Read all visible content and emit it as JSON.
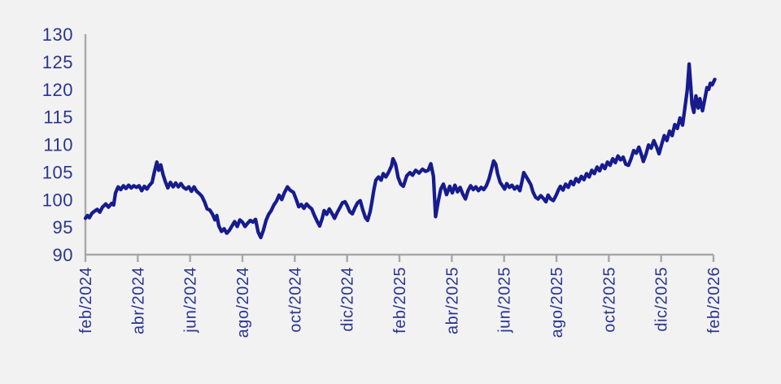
{
  "chart_data": {
    "type": "line",
    "title": "",
    "xlabel": "",
    "ylabel": "",
    "grid": false,
    "legend_position": "none",
    "background_color": "#f2f2f2",
    "axis_color": "#a9a7a9",
    "label_color": "#293590",
    "line_color": "#161c8e",
    "ylim": [
      90,
      130
    ],
    "y_tick_labels": [
      "130",
      "125",
      "120",
      "115",
      "110",
      "105",
      "100",
      "95",
      "90"
    ],
    "x_tick_labels": [
      "feb/2024",
      "abr/2024",
      "jun/2024",
      "ago/2024",
      "oct/2024",
      "dic/2024",
      "feb/2025",
      "abr/2025",
      "jun/2025",
      "ago/2025",
      "oct/2025",
      "dic/2025",
      "feb/2026"
    ],
    "x_unit": "months since feb/2024",
    "xlim_months": [
      0,
      24.1
    ],
    "series": [
      {
        "name": "index",
        "points": [
          [
            0.0,
            96.6
          ],
          [
            0.08,
            97.1
          ],
          [
            0.15,
            96.7
          ],
          [
            0.25,
            97.5
          ],
          [
            0.35,
            97.9
          ],
          [
            0.45,
            98.2
          ],
          [
            0.55,
            97.7
          ],
          [
            0.65,
            98.6
          ],
          [
            0.78,
            99.2
          ],
          [
            0.88,
            98.6
          ],
          [
            1.0,
            99.3
          ],
          [
            1.08,
            99.0
          ],
          [
            1.15,
            101.2
          ],
          [
            1.25,
            102.3
          ],
          [
            1.35,
            101.8
          ],
          [
            1.45,
            102.5
          ],
          [
            1.55,
            102.0
          ],
          [
            1.65,
            102.6
          ],
          [
            1.75,
            102.1
          ],
          [
            1.85,
            102.5
          ],
          [
            1.95,
            102.2
          ],
          [
            2.05,
            102.5
          ],
          [
            2.15,
            101.6
          ],
          [
            2.25,
            102.4
          ],
          [
            2.35,
            101.9
          ],
          [
            2.45,
            102.6
          ],
          [
            2.55,
            103.1
          ],
          [
            2.62,
            104.7
          ],
          [
            2.73,
            106.8
          ],
          [
            2.8,
            105.3
          ],
          [
            2.88,
            106.3
          ],
          [
            2.97,
            104.5
          ],
          [
            3.05,
            103.3
          ],
          [
            3.15,
            102.1
          ],
          [
            3.25,
            103.1
          ],
          [
            3.35,
            102.3
          ],
          [
            3.45,
            103.0
          ],
          [
            3.55,
            102.3
          ],
          [
            3.65,
            102.9
          ],
          [
            3.75,
            102.2
          ],
          [
            3.85,
            101.9
          ],
          [
            3.95,
            102.3
          ],
          [
            4.05,
            101.5
          ],
          [
            4.15,
            102.3
          ],
          [
            4.25,
            101.5
          ],
          [
            4.35,
            101.1
          ],
          [
            4.45,
            100.6
          ],
          [
            4.55,
            99.6
          ],
          [
            4.65,
            98.3
          ],
          [
            4.75,
            98.1
          ],
          [
            4.85,
            97.4
          ],
          [
            4.95,
            96.3
          ],
          [
            5.02,
            97.1
          ],
          [
            5.1,
            95.2
          ],
          [
            5.2,
            94.2
          ],
          [
            5.3,
            94.7
          ],
          [
            5.4,
            93.9
          ],
          [
            5.5,
            94.4
          ],
          [
            5.6,
            95.2
          ],
          [
            5.7,
            96.0
          ],
          [
            5.8,
            95.1
          ],
          [
            5.9,
            96.3
          ],
          [
            6.0,
            95.9
          ],
          [
            6.1,
            95.1
          ],
          [
            6.2,
            95.7
          ],
          [
            6.3,
            96.2
          ],
          [
            6.4,
            95.9
          ],
          [
            6.5,
            96.4
          ],
          [
            6.6,
            94.1
          ],
          [
            6.7,
            93.1
          ],
          [
            6.8,
            94.4
          ],
          [
            6.9,
            96.2
          ],
          [
            7.0,
            97.3
          ],
          [
            7.1,
            98.0
          ],
          [
            7.2,
            99.0
          ],
          [
            7.3,
            99.7
          ],
          [
            7.4,
            100.8
          ],
          [
            7.5,
            100.0
          ],
          [
            7.6,
            101.2
          ],
          [
            7.72,
            102.3
          ],
          [
            7.82,
            101.7
          ],
          [
            7.95,
            101.3
          ],
          [
            8.05,
            100.1
          ],
          [
            8.15,
            98.7
          ],
          [
            8.25,
            99.1
          ],
          [
            8.35,
            98.4
          ],
          [
            8.45,
            99.2
          ],
          [
            8.55,
            98.7
          ],
          [
            8.65,
            98.3
          ],
          [
            8.75,
            97.1
          ],
          [
            8.85,
            96.1
          ],
          [
            8.95,
            95.2
          ],
          [
            9.05,
            96.6
          ],
          [
            9.12,
            98.0
          ],
          [
            9.22,
            97.3
          ],
          [
            9.32,
            98.3
          ],
          [
            9.42,
            97.5
          ],
          [
            9.52,
            96.6
          ],
          [
            9.62,
            97.6
          ],
          [
            9.72,
            98.5
          ],
          [
            9.82,
            99.4
          ],
          [
            9.92,
            99.6
          ],
          [
            10.0,
            98.9
          ],
          [
            10.1,
            97.8
          ],
          [
            10.2,
            97.4
          ],
          [
            10.3,
            98.5
          ],
          [
            10.4,
            99.4
          ],
          [
            10.5,
            99.8
          ],
          [
            10.6,
            98.1
          ],
          [
            10.7,
            96.7
          ],
          [
            10.78,
            96.2
          ],
          [
            10.88,
            97.8
          ],
          [
            10.95,
            99.6
          ],
          [
            11.02,
            101.7
          ],
          [
            11.1,
            103.5
          ],
          [
            11.2,
            104.1
          ],
          [
            11.3,
            103.5
          ],
          [
            11.38,
            104.7
          ],
          [
            11.48,
            104.1
          ],
          [
            11.58,
            104.9
          ],
          [
            11.65,
            105.6
          ],
          [
            11.7,
            106.1
          ],
          [
            11.75,
            107.4
          ],
          [
            11.85,
            106.4
          ],
          [
            11.95,
            104.0
          ],
          [
            12.05,
            102.8
          ],
          [
            12.15,
            102.4
          ],
          [
            12.28,
            104.3
          ],
          [
            12.4,
            104.9
          ],
          [
            12.5,
            104.4
          ],
          [
            12.62,
            105.3
          ],
          [
            12.75,
            104.8
          ],
          [
            12.88,
            105.5
          ],
          [
            13.0,
            105.1
          ],
          [
            13.1,
            105.3
          ],
          [
            13.2,
            106.5
          ],
          [
            13.3,
            104.2
          ],
          [
            13.38,
            96.9
          ],
          [
            13.48,
            99.6
          ],
          [
            13.58,
            101.9
          ],
          [
            13.68,
            102.8
          ],
          [
            13.8,
            100.9
          ],
          [
            13.92,
            102.4
          ],
          [
            14.02,
            101.2
          ],
          [
            14.12,
            102.6
          ],
          [
            14.22,
            101.4
          ],
          [
            14.32,
            102.2
          ],
          [
            14.42,
            101.0
          ],
          [
            14.52,
            100.1
          ],
          [
            14.62,
            101.6
          ],
          [
            14.72,
            102.5
          ],
          [
            14.82,
            101.8
          ],
          [
            14.92,
            102.3
          ],
          [
            15.02,
            101.6
          ],
          [
            15.12,
            102.2
          ],
          [
            15.22,
            101.8
          ],
          [
            15.32,
            102.5
          ],
          [
            15.42,
            103.7
          ],
          [
            15.52,
            105.5
          ],
          [
            15.6,
            107.0
          ],
          [
            15.68,
            106.4
          ],
          [
            15.75,
            104.7
          ],
          [
            15.85,
            103.1
          ],
          [
            15.95,
            102.4
          ],
          [
            16.02,
            101.9
          ],
          [
            16.1,
            102.9
          ],
          [
            16.2,
            102.2
          ],
          [
            16.3,
            102.6
          ],
          [
            16.4,
            101.9
          ],
          [
            16.5,
            102.4
          ],
          [
            16.6,
            101.6
          ],
          [
            16.68,
            103.2
          ],
          [
            16.75,
            104.9
          ],
          [
            16.85,
            104.1
          ],
          [
            16.95,
            103.3
          ],
          [
            17.02,
            102.7
          ],
          [
            17.1,
            101.4
          ],
          [
            17.2,
            100.4
          ],
          [
            17.3,
            100.1
          ],
          [
            17.4,
            100.7
          ],
          [
            17.5,
            100.2
          ],
          [
            17.6,
            99.6
          ],
          [
            17.68,
            100.8
          ],
          [
            17.78,
            100.1
          ],
          [
            17.88,
            99.8
          ],
          [
            17.98,
            100.7
          ],
          [
            18.08,
            101.8
          ],
          [
            18.15,
            102.4
          ],
          [
            18.25,
            101.7
          ],
          [
            18.35,
            102.8
          ],
          [
            18.45,
            102.2
          ],
          [
            18.55,
            103.3
          ],
          [
            18.65,
            102.7
          ],
          [
            18.75,
            103.8
          ],
          [
            18.85,
            103.2
          ],
          [
            18.95,
            104.2
          ],
          [
            19.05,
            103.6
          ],
          [
            19.15,
            104.7
          ],
          [
            19.25,
            104.1
          ],
          [
            19.35,
            105.3
          ],
          [
            19.45,
            104.7
          ],
          [
            19.55,
            105.9
          ],
          [
            19.65,
            105.2
          ],
          [
            19.75,
            106.3
          ],
          [
            19.85,
            105.6
          ],
          [
            19.95,
            106.8
          ],
          [
            20.05,
            106.2
          ],
          [
            20.15,
            107.4
          ],
          [
            20.25,
            106.7
          ],
          [
            20.35,
            107.9
          ],
          [
            20.45,
            107.2
          ],
          [
            20.55,
            107.7
          ],
          [
            20.65,
            106.4
          ],
          [
            20.75,
            106.2
          ],
          [
            20.85,
            107.4
          ],
          [
            20.95,
            108.9
          ],
          [
            21.05,
            108.4
          ],
          [
            21.15,
            109.5
          ],
          [
            21.25,
            108.1
          ],
          [
            21.32,
            106.9
          ],
          [
            21.42,
            108.2
          ],
          [
            21.52,
            109.9
          ],
          [
            21.62,
            109.3
          ],
          [
            21.72,
            110.7
          ],
          [
            21.82,
            109.6
          ],
          [
            21.92,
            108.3
          ],
          [
            22.02,
            110.0
          ],
          [
            22.12,
            111.6
          ],
          [
            22.22,
            110.7
          ],
          [
            22.32,
            112.4
          ],
          [
            22.42,
            111.6
          ],
          [
            22.52,
            113.6
          ],
          [
            22.62,
            112.9
          ],
          [
            22.72,
            114.8
          ],
          [
            22.82,
            113.5
          ],
          [
            22.92,
            117.1
          ],
          [
            23.0,
            119.9
          ],
          [
            23.07,
            124.6
          ],
          [
            23.13,
            120.8
          ],
          [
            23.18,
            117.3
          ],
          [
            23.25,
            115.8
          ],
          [
            23.33,
            118.8
          ],
          [
            23.42,
            116.6
          ],
          [
            23.48,
            118.3
          ],
          [
            23.58,
            116.1
          ],
          [
            23.68,
            118.5
          ],
          [
            23.75,
            120.3
          ],
          [
            23.82,
            120.0
          ],
          [
            23.88,
            121.1
          ],
          [
            23.95,
            120.8
          ],
          [
            24.05,
            121.8
          ]
        ]
      }
    ]
  }
}
